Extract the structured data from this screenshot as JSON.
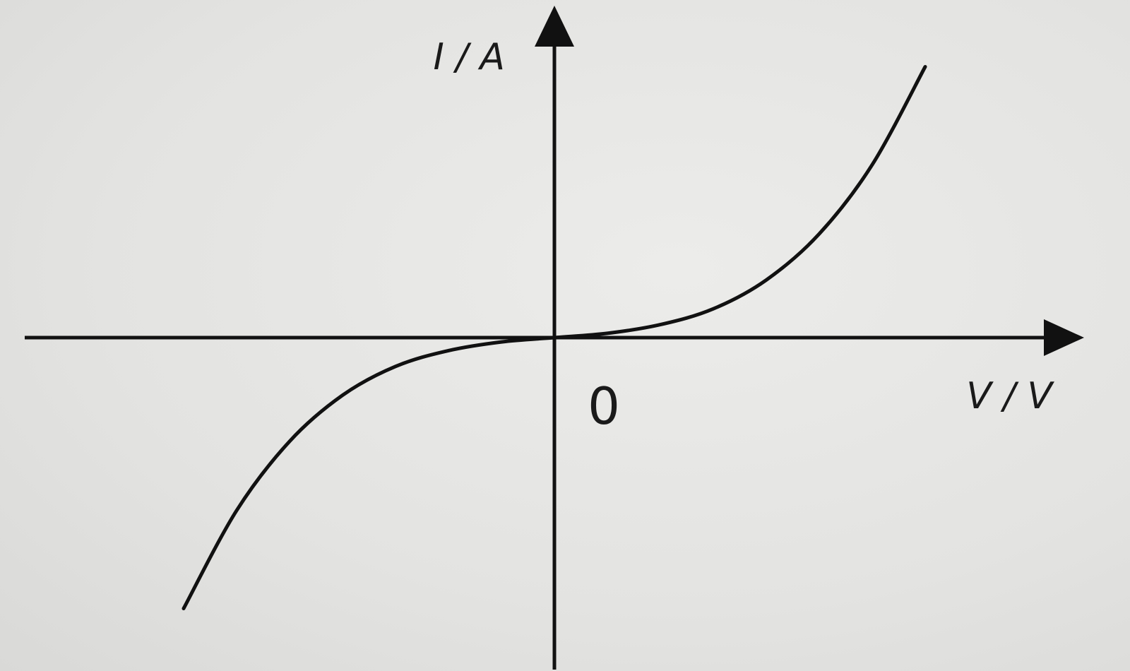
{
  "chart_data": {
    "type": "line",
    "title": "",
    "xlabel": "V / V",
    "ylabel": "I / A",
    "origin_label": "0",
    "xlim": [
      -1,
      1
    ],
    "ylim": [
      -1,
      1
    ],
    "grid": false,
    "legend": "none",
    "series": [
      {
        "x": [
          -0.7,
          -0.6,
          -0.5,
          -0.4,
          -0.3,
          -0.2,
          -0.1,
          0,
          0.1,
          0.2,
          0.3,
          0.4,
          0.5,
          0.6,
          0.7
        ],
        "y": [
          -0.94,
          -0.6,
          -0.36,
          -0.2,
          -0.1,
          -0.045,
          -0.015,
          0,
          0.015,
          0.045,
          0.1,
          0.2,
          0.36,
          0.6,
          0.94
        ]
      }
    ],
    "colors": {
      "line": "#111111",
      "axes": "#111111",
      "background": "#e4e4e2"
    }
  }
}
